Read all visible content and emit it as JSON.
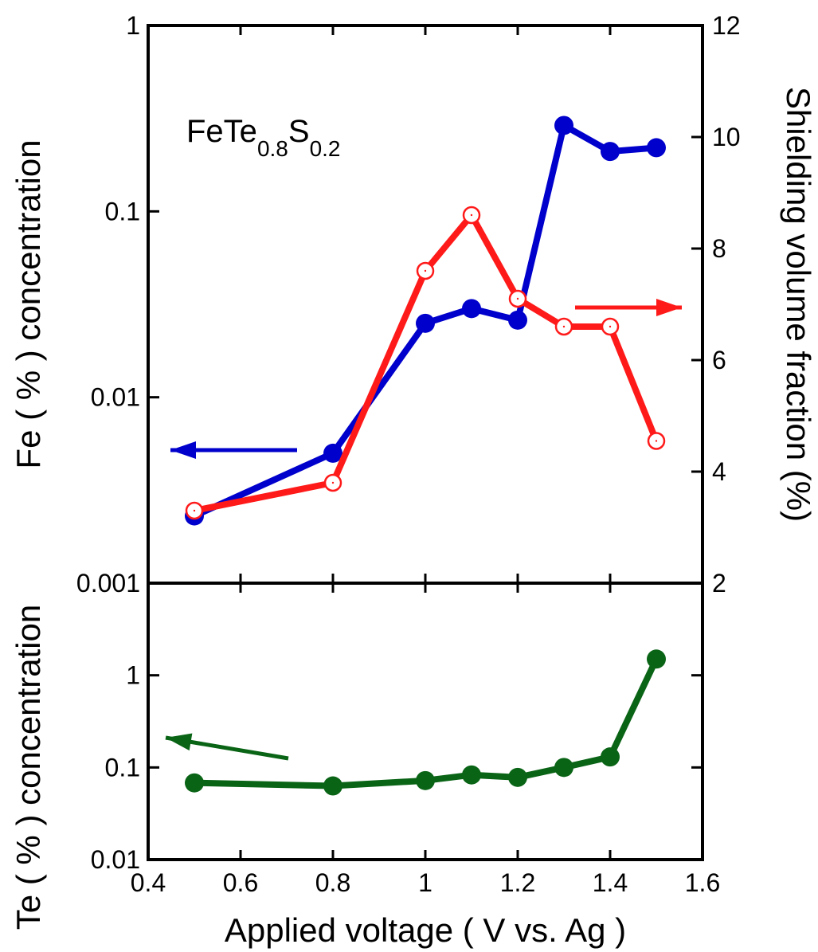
{
  "colors": {
    "fe": "#0000cc",
    "shield": "#ff1a1a",
    "te": "#0a6416",
    "axis": "#000000"
  },
  "annotation": {
    "base": "FeTe",
    "sub1": "0.8",
    "mid": "S",
    "sub2": "0.2"
  },
  "chart_data": [
    {
      "type": "line",
      "panel": "top",
      "x_scale": "linear",
      "y_scale": "log",
      "xlim": [
        0.4,
        1.6
      ],
      "ylim": [
        0.001,
        1
      ],
      "y2lim": [
        2,
        12
      ],
      "y_ticks": [
        "1",
        "0.1",
        "0.01",
        "0.001"
      ],
      "y2_ticks": [
        "12",
        "10",
        "8",
        "6",
        "4",
        "2"
      ],
      "ylabel": "Fe ( % ) concentration",
      "y2label": "Shielding volume fraction (%)",
      "series": [
        {
          "key": "fe",
          "axis": "left",
          "marker": "filled-circle",
          "x": [
            0.5,
            0.8,
            1.0,
            1.1,
            1.2,
            1.3,
            1.4,
            1.5
          ],
          "values": [
            0.0023,
            0.005,
            0.025,
            0.03,
            0.026,
            0.29,
            0.21,
            0.22
          ]
        },
        {
          "key": "shield",
          "axis": "right",
          "marker": "open-circle",
          "x": [
            0.5,
            0.8,
            1.0,
            1.1,
            1.2,
            1.3,
            1.4,
            1.5
          ],
          "values": [
            3.3,
            3.8,
            7.6,
            8.6,
            7.1,
            6.6,
            6.6,
            4.55
          ]
        }
      ],
      "arrows": [
        {
          "key": "fe",
          "direction": "left"
        },
        {
          "key": "shield",
          "direction": "right"
        }
      ]
    },
    {
      "type": "line",
      "panel": "bottom",
      "x_scale": "linear",
      "y_scale": "log",
      "xlim": [
        0.4,
        1.6
      ],
      "ylim": [
        0.01,
        10
      ],
      "y_ticks": [
        "1",
        "0.1",
        "0.01"
      ],
      "x_ticks": [
        "0.4",
        "0.6",
        "0.8",
        "1",
        "1.2",
        "1.4",
        "1.6"
      ],
      "xlabel": "Applied voltage ( V vs. Ag )",
      "ylabel": "Te ( % ) concentration",
      "series": [
        {
          "key": "te",
          "axis": "left",
          "marker": "filled-circle",
          "x": [
            0.5,
            0.8,
            1.0,
            1.1,
            1.2,
            1.3,
            1.4,
            1.5
          ],
          "values": [
            0.068,
            0.063,
            0.072,
            0.083,
            0.078,
            0.1,
            0.13,
            1.5
          ]
        }
      ],
      "arrows": [
        {
          "key": "te",
          "direction": "left"
        }
      ]
    }
  ]
}
